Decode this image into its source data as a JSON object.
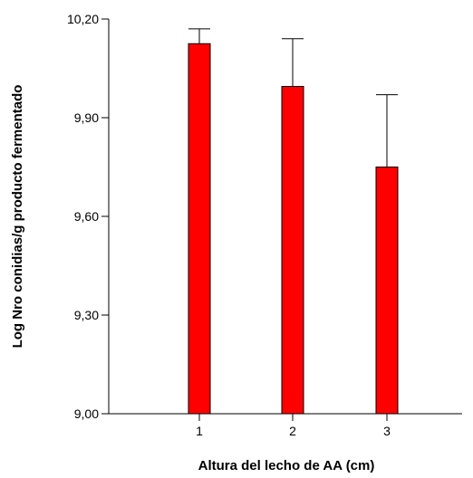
{
  "chart_data": {
    "type": "bar",
    "title": "",
    "xlabel": "Altura del lecho de AA (cm)",
    "ylabel": "Log Nro conidias/g producto fermentado",
    "categories": [
      "1",
      "2",
      "3"
    ],
    "values": [
      10.125,
      9.995,
      9.75
    ],
    "error_upper": [
      10.17,
      10.14,
      9.97
    ],
    "ylim": [
      9.0,
      10.2
    ],
    "yticks": [
      9.0,
      9.3,
      9.6,
      9.9,
      10.2
    ],
    "ytick_labels": [
      "9,00",
      "9,30",
      "9,60",
      "9,90",
      "10,20"
    ],
    "grid": false,
    "legend": "none",
    "bar_color": "#ff0000",
    "bar_edge_color": "#000000"
  }
}
